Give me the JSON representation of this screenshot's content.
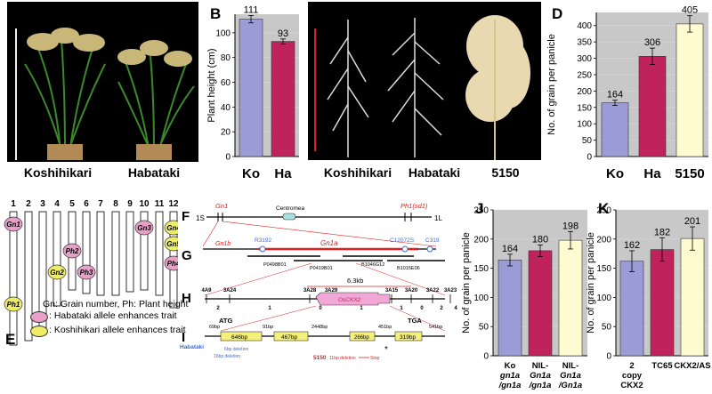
{
  "panels": {
    "A": {
      "letter": "A",
      "labels": [
        "Koshihikari",
        "Habataki"
      ]
    },
    "B": {
      "letter": "B"
    },
    "C": {
      "letter": "C",
      "labels": [
        "Koshihikari",
        "Habataki",
        "5150"
      ]
    },
    "D": {
      "letter": "D"
    },
    "E": {
      "letter": "E",
      "chromosomes": [
        "1",
        "2",
        "3",
        "4",
        "5",
        "6",
        "7",
        "8",
        "9",
        "10",
        "11",
        "12"
      ],
      "qtls": [
        "Gn1",
        "Ph1",
        "Gn2",
        "Ph2",
        "Ph3",
        "Gn3",
        "Gn4",
        "Gn5",
        "Ph4"
      ],
      "legend_title": "Gn: Grain number, Ph: Plant height",
      "legend_habataki": ": Habataki allele enhances trait",
      "legend_koshihikari": ": Koshihikari allele enhances trait"
    },
    "F": {
      "letter": "F",
      "left": "1S",
      "right": "1L",
      "gene1": "Gn1",
      "centromere": "Centromea",
      "gene2": "Ph1(sd1)"
    },
    "G": {
      "letter": "G",
      "markers": [
        "R3192",
        "C12072S",
        "C319"
      ],
      "gn1b": "Gn1b",
      "gn1a": "Gn1a",
      "bacs": [
        "P0498B01",
        "P0419B01",
        "B1046G12",
        "B1015E06"
      ]
    },
    "H": {
      "letter": "H",
      "markers": [
        "4A9",
        "3A24",
        "3A28",
        "3A29",
        "3A15",
        "3A20",
        "3A22",
        "3A23"
      ],
      "counts": [
        "2",
        "1",
        "0",
        "1",
        "1",
        "0",
        "2",
        "4"
      ],
      "span": "6.3kb",
      "gene": "OsCKX2"
    },
    "I": {
      "letter": "I",
      "atg": "ATG",
      "tga": "TGA",
      "segs": [
        "69bp",
        "646bp",
        "91bp",
        "467bp",
        "2448bp",
        "266bp",
        "451bp",
        "319bp",
        "541bp"
      ],
      "habataki": "Habataki",
      "hab_note1": "6bp deletion",
      "hab_note2": "16bp deletion",
      "line5150": "5150",
      "note5150": "11bp deletion",
      "stop": "Stop"
    },
    "J": {
      "letter": "J"
    },
    "K": {
      "letter": "K"
    }
  },
  "chart_data": [
    {
      "id": "B",
      "type": "bar",
      "ylabel": "Plant height (cm)",
      "categories": [
        "Ko",
        "Ha"
      ],
      "values": [
        111,
        93
      ],
      "errors": [
        3,
        2
      ],
      "colors": [
        "#9b9bd6",
        "#c0235c"
      ],
      "ylim": [
        0,
        115
      ],
      "ticks": [
        0,
        20,
        40,
        60,
        80,
        100
      ]
    },
    {
      "id": "D",
      "type": "bar",
      "ylabel": "No. of grain per panicle",
      "categories": [
        "Ko",
        "Ha",
        "5150"
      ],
      "values": [
        164,
        306,
        405
      ],
      "errors": [
        8,
        25,
        25
      ],
      "colors": [
        "#9b9bd6",
        "#c0235c",
        "#fffbd0"
      ],
      "ylim": [
        0,
        440
      ],
      "ticks": [
        0,
        50,
        100,
        150,
        200,
        250,
        300,
        350,
        400
      ]
    },
    {
      "id": "J",
      "type": "bar",
      "ylabel": "No. of grain per panicle",
      "categories": [
        "Ko gn1a /gn1a",
        "NIL- Gn1a /gn1a",
        "NIL- Gn1a /Gn1a"
      ],
      "values": [
        164,
        180,
        198
      ],
      "errors": [
        10,
        10,
        15
      ],
      "colors": [
        "#9b9bd6",
        "#c0235c",
        "#fffbd0"
      ],
      "ylim": [
        0,
        250
      ],
      "ticks": [
        0,
        50,
        100,
        150,
        200,
        250
      ]
    },
    {
      "id": "K",
      "type": "bar",
      "ylabel": "No. of grain per panicle",
      "categories": [
        "2 copy CKX2",
        "TC65",
        "CKX2/AS"
      ],
      "values": [
        162,
        182,
        201
      ],
      "errors": [
        18,
        20,
        20
      ],
      "colors": [
        "#9b9bd6",
        "#c0235c",
        "#fffbd0"
      ],
      "ylim": [
        0,
        250
      ],
      "ticks": [
        0,
        50,
        100,
        150,
        200,
        250
      ]
    }
  ],
  "colors": {
    "ko": "#9b9bd6",
    "ha": "#c0235c",
    "line5150": "#fffbd0",
    "pink": "#e8a0c8",
    "yellow": "#eeee66",
    "red": "#e02020",
    "bg": "#c8c8c8"
  }
}
